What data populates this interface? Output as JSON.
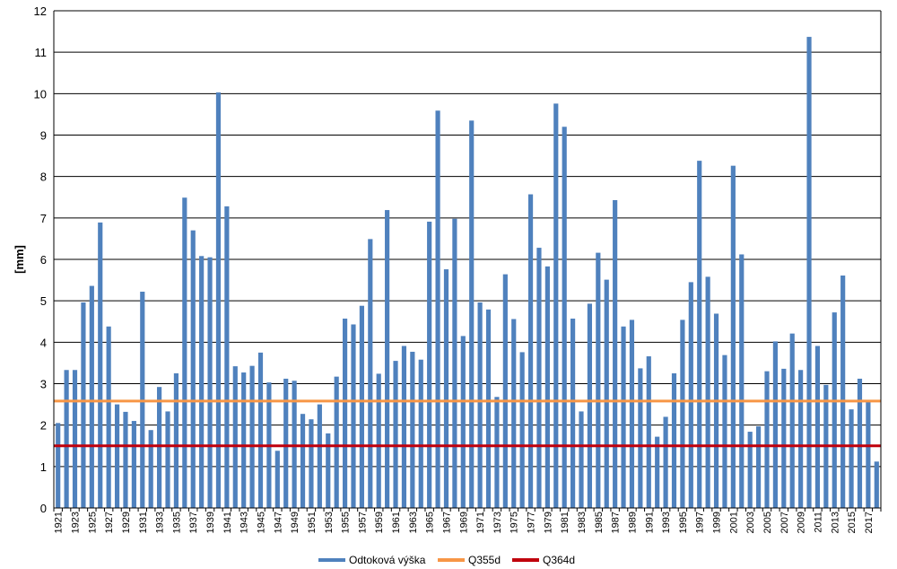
{
  "chart_data": {
    "type": "bar",
    "ylabel": "[mm]",
    "ylim": [
      0,
      12
    ],
    "yticks": [
      0,
      1,
      2,
      3,
      4,
      5,
      6,
      7,
      8,
      9,
      10,
      11,
      12
    ],
    "grid": true,
    "legend_position": "bottom",
    "x_start": 1921,
    "x_label_years": [
      "1921",
      "1923",
      "1925",
      "1927",
      "1929",
      "1931",
      "1933",
      "1935",
      "1937",
      "1939",
      "1941",
      "1943",
      "1945",
      "1947",
      "1949",
      "1951",
      "1953",
      "1955",
      "1957",
      "1959",
      "1961",
      "1963",
      "1965",
      "1967",
      "1969",
      "1971",
      "1973",
      "1975",
      "1977",
      "1979",
      "1981",
      "1983",
      "1985",
      "1987",
      "1989",
      "1991",
      "1993",
      "1995",
      "1997",
      "1999",
      "2001",
      "2003",
      "2005",
      "2007",
      "2009",
      "2011",
      "2013",
      "2015",
      "2017"
    ],
    "series": [
      {
        "name": "Odtoková výška",
        "color": "#4F81BD",
        "values": [
          2.05,
          3.33,
          3.33,
          4.96,
          5.36,
          6.89,
          4.38,
          2.5,
          2.32,
          2.1,
          5.22,
          1.88,
          2.92,
          2.33,
          3.25,
          7.49,
          6.7,
          6.08,
          6.05,
          10.03,
          7.28,
          3.42,
          3.27,
          3.43,
          3.75,
          3.03,
          1.38,
          3.12,
          3.07,
          2.27,
          2.14,
          2.5,
          1.8,
          3.17,
          4.57,
          4.43,
          4.88,
          6.49,
          3.24,
          7.19,
          3.55,
          3.91,
          3.77,
          3.58,
          6.91,
          9.59,
          5.76,
          6.98,
          4.15,
          9.35,
          4.96,
          4.79,
          2.68,
          5.64,
          4.56,
          3.76,
          7.57,
          6.28,
          5.83,
          9.76,
          9.2,
          4.57,
          2.33,
          4.93,
          6.16,
          5.51,
          7.43,
          4.38,
          4.54,
          3.37,
          3.66,
          1.72,
          2.2,
          3.25,
          4.54,
          5.45,
          8.38,
          5.58,
          4.69,
          3.69,
          8.26,
          6.12,
          1.84,
          1.97,
          3.3,
          4.02,
          3.36,
          4.21,
          3.33,
          11.37,
          3.91,
          2.97,
          4.72,
          5.61,
          2.38,
          3.12,
          2.56,
          1.12
        ]
      }
    ],
    "lines": [
      {
        "name": "Q355d",
        "color": "#F79646",
        "value": 2.58
      },
      {
        "name": "Q364d",
        "color": "#C0000C",
        "value": 1.5
      }
    ]
  }
}
